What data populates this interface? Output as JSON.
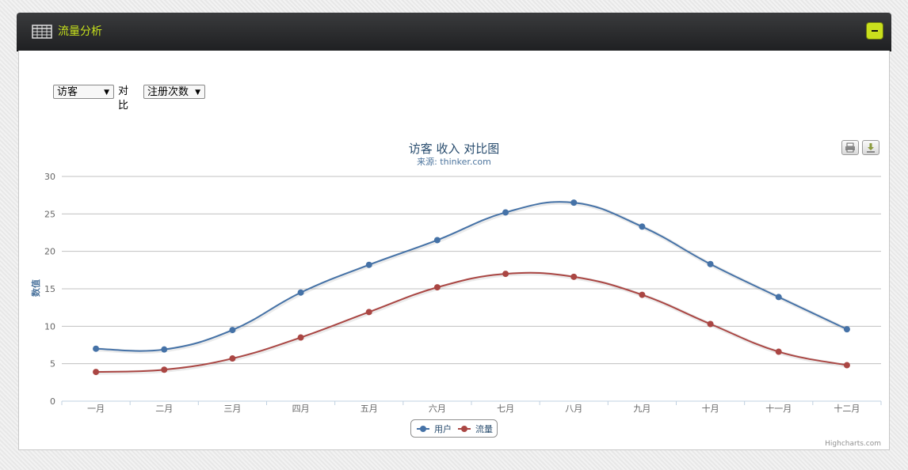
{
  "panel": {
    "title": "流量分析",
    "header_icon": "table-icon",
    "collapse_icon": "minus-icon",
    "accent_color": "#c6e01c"
  },
  "controls": {
    "metric_a": "访客",
    "compare_label": "对比",
    "metric_b": "注册次数"
  },
  "toolbar": {
    "print_icon": "print-icon",
    "export_icon": "download-icon"
  },
  "credits": "Highcharts.com",
  "chart_data": {
    "type": "line",
    "title": "访客 收入 对比图",
    "subtitle": "来源: thinker.com",
    "ylabel": "数值",
    "xlabel": "",
    "ylim": [
      0,
      30
    ],
    "yticks": [
      0,
      5,
      10,
      15,
      20,
      25,
      30
    ],
    "grid": true,
    "legend_position": "bottom-center",
    "categories": [
      "一月",
      "二月",
      "三月",
      "四月",
      "五月",
      "六月",
      "七月",
      "八月",
      "九月",
      "十月",
      "十一月",
      "十二月"
    ],
    "series": [
      {
        "name": "用户",
        "color": "#4572a7",
        "values": [
          7.0,
          6.9,
          9.5,
          14.5,
          18.2,
          21.5,
          25.2,
          26.5,
          23.3,
          18.3,
          13.9,
          9.6
        ]
      },
      {
        "name": "流量",
        "color": "#aa4643",
        "values": [
          3.9,
          4.2,
          5.7,
          8.5,
          11.9,
          15.2,
          17.0,
          16.6,
          14.2,
          10.3,
          6.6,
          4.8
        ]
      }
    ]
  }
}
